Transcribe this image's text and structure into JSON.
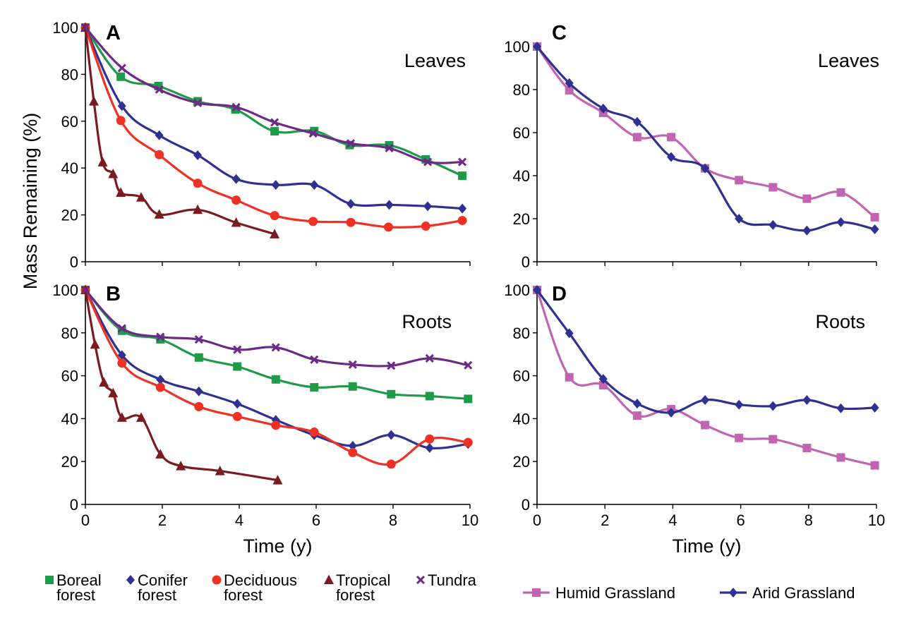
{
  "chart_data": [
    {
      "panel": "A",
      "tag": "Leaves",
      "type": "line",
      "xlabel": "",
      "ylabel": "Mass Remaining (%)",
      "xlim": [
        0,
        10
      ],
      "ylim": [
        0,
        100
      ],
      "xticks": [],
      "yticks": [
        "0",
        "20",
        "40",
        "60",
        "80",
        "100"
      ],
      "series": [
        {
          "key": "boreal",
          "color": "#1e9a49",
          "marker": "square",
          "x": [
            0,
            0.92,
            1.9,
            2.92,
            3.9,
            4.92,
            5.95,
            6.87,
            7.9,
            8.85,
            9.8
          ],
          "y": [
            100,
            79,
            75,
            68.5,
            65,
            55.7,
            55.8,
            49.8,
            49.7,
            43.7,
            36.7
          ]
        },
        {
          "key": "conifer",
          "color": "#2e3192",
          "marker": "diamond",
          "x": [
            0,
            0.95,
            1.92,
            2.92,
            3.92,
            4.95,
            5.95,
            6.9,
            7.9,
            8.9,
            9.8
          ],
          "y": [
            100,
            66.5,
            54,
            45.5,
            35.3,
            32.8,
            32.8,
            24.7,
            24.3,
            23.7,
            22.7
          ]
        },
        {
          "key": "deciduous",
          "color": "#ee3124",
          "marker": "circle",
          "x": [
            0,
            0.92,
            1.92,
            2.92,
            3.92,
            4.92,
            5.92,
            6.9,
            7.88,
            8.85,
            9.8
          ],
          "y": [
            100,
            60.3,
            45.7,
            33.5,
            26.3,
            19.7,
            17.2,
            16.8,
            14.8,
            15.2,
            17.6
          ]
        },
        {
          "key": "tropical",
          "color": "#7b1a1f",
          "marker": "triangle",
          "x": [
            0,
            0.22,
            0.45,
            0.72,
            0.92,
            1.45,
            1.92,
            2.92,
            3.92,
            4.92
          ],
          "y": [
            100,
            68.5,
            42.5,
            37.5,
            29.5,
            27.5,
            20.2,
            22.2,
            16.7,
            11.8
          ]
        },
        {
          "key": "tundra",
          "color": "#6c2a86",
          "marker": "cross",
          "x": [
            0,
            0.95,
            1.92,
            2.92,
            3.92,
            4.92,
            5.92,
            6.9,
            7.9,
            8.9,
            9.8
          ],
          "y": [
            100,
            82.7,
            73.5,
            67.8,
            66,
            59.5,
            54.8,
            50.5,
            48.5,
            42.6,
            42.6
          ]
        }
      ]
    },
    {
      "panel": "B",
      "tag": "Roots",
      "type": "line",
      "xlabel": "Time (y)",
      "ylabel": "",
      "xlim": [
        0,
        10
      ],
      "ylim": [
        0,
        100
      ],
      "xticks": [
        "0",
        "2",
        "4",
        "6",
        "8",
        "10"
      ],
      "yticks": [
        "0",
        "20",
        "40",
        "60",
        "80",
        "100"
      ],
      "series": [
        {
          "key": "boreal",
          "color": "#1e9a49",
          "marker": "square",
          "x": [
            0,
            0.95,
            1.95,
            2.95,
            3.95,
            4.95,
            5.95,
            6.95,
            7.95,
            8.95,
            9.95
          ],
          "y": [
            100,
            81,
            77,
            68.5,
            64.3,
            58.3,
            54.6,
            55,
            51.4,
            50.5,
            49.2
          ]
        },
        {
          "key": "conifer",
          "color": "#2e3192",
          "marker": "diamond",
          "x": [
            0,
            0.95,
            1.95,
            2.95,
            3.95,
            4.95,
            5.95,
            6.95,
            7.95,
            8.95,
            9.95
          ],
          "y": [
            100,
            69.6,
            58.2,
            52.7,
            46.9,
            39.4,
            32.3,
            27.3,
            32.4,
            26.3,
            28.2
          ]
        },
        {
          "key": "deciduous",
          "color": "#ee3124",
          "marker": "circle",
          "x": [
            0,
            0.95,
            1.95,
            2.95,
            3.95,
            4.95,
            5.95,
            6.95,
            7.95,
            8.95,
            9.95
          ],
          "y": [
            100,
            65.9,
            54.6,
            45.6,
            41,
            36.9,
            33.7,
            24.2,
            18.8,
            30.5,
            28.9
          ]
        },
        {
          "key": "tropical",
          "color": "#7b1a1f",
          "marker": "triangle",
          "x": [
            0,
            0.25,
            0.48,
            0.72,
            0.95,
            1.45,
            1.95,
            2.48,
            3.5,
            5.0
          ],
          "y": [
            100,
            74.6,
            56.9,
            51.9,
            40.5,
            40.5,
            23.4,
            17.9,
            15.6,
            11.3
          ]
        },
        {
          "key": "tundra",
          "color": "#6c2a86",
          "marker": "cross",
          "x": [
            0,
            0.95,
            1.95,
            2.95,
            3.95,
            4.95,
            5.95,
            6.95,
            7.95,
            8.95,
            9.95
          ],
          "y": [
            100,
            82.1,
            78.1,
            76.9,
            72.2,
            73.2,
            67.5,
            65.2,
            64.7,
            68.1,
            64.9
          ]
        }
      ]
    },
    {
      "panel": "C",
      "tag": "Leaves",
      "type": "line",
      "xlabel": "",
      "ylabel": "",
      "xlim": [
        0,
        10
      ],
      "ylim": [
        0,
        100
      ],
      "xticks": [],
      "yticks": [
        "0",
        "20",
        "40",
        "60",
        "80",
        "100"
      ],
      "series": [
        {
          "key": "humid",
          "color": "#c164b2",
          "marker": "square",
          "x": [
            0,
            0.95,
            1.95,
            2.95,
            3.95,
            4.95,
            5.95,
            6.95,
            7.95,
            8.95,
            9.95
          ],
          "y": [
            100,
            79.7,
            69.2,
            57.9,
            57.9,
            43.4,
            37.9,
            34.6,
            29.3,
            32.2,
            20.7
          ]
        },
        {
          "key": "arid",
          "color": "#2e3192",
          "marker": "diamond",
          "x": [
            0,
            0.95,
            1.95,
            2.95,
            3.95,
            4.95,
            5.95,
            6.95,
            7.95,
            8.95,
            9.95
          ],
          "y": [
            100,
            83,
            71.2,
            65,
            48.7,
            43.4,
            20,
            17.1,
            14.5,
            18.4,
            15.1
          ]
        }
      ]
    },
    {
      "panel": "D",
      "tag": "Roots",
      "type": "line",
      "xlabel": "Time (y)",
      "ylabel": "",
      "xlim": [
        0,
        10
      ],
      "ylim": [
        0,
        100
      ],
      "xticks": [
        "0",
        "2",
        "4",
        "6",
        "8",
        "10"
      ],
      "yticks": [
        "0",
        "20",
        "40",
        "60",
        "80",
        "100"
      ],
      "series": [
        {
          "key": "humid",
          "color": "#c164b2",
          "marker": "square",
          "x": [
            0,
            0.95,
            1.95,
            2.95,
            3.95,
            4.95,
            5.95,
            6.95,
            7.95,
            8.95,
            9.95
          ],
          "y": [
            100,
            59.3,
            55.6,
            41.4,
            44.4,
            37,
            31,
            30.4,
            26.3,
            21.9,
            18.2
          ]
        },
        {
          "key": "arid",
          "color": "#2e3192",
          "marker": "diamond",
          "x": [
            0,
            0.95,
            1.95,
            2.95,
            3.95,
            4.95,
            5.95,
            6.95,
            7.95,
            8.95,
            9.95
          ],
          "y": [
            100,
            79.8,
            58.5,
            47,
            42.8,
            48.7,
            46.5,
            45.9,
            48.7,
            44.8,
            45.1
          ]
        }
      ]
    }
  ],
  "legend_left": [
    {
      "key": "boreal",
      "line1": "Boreal",
      "line2": "forest",
      "color": "#1e9a49",
      "marker": "square"
    },
    {
      "key": "conifer",
      "line1": "Conifer",
      "line2": "forest",
      "color": "#2e3192",
      "marker": "diamond"
    },
    {
      "key": "deciduous",
      "line1": "Deciduous",
      "line2": "forest",
      "color": "#ee3124",
      "marker": "circle"
    },
    {
      "key": "tropical",
      "line1": "Tropical",
      "line2": "forest",
      "color": "#7b1a1f",
      "marker": "triangle"
    },
    {
      "key": "tundra",
      "line1": "Tundra",
      "line2": "",
      "color": "#6c2a86",
      "marker": "cross"
    }
  ],
  "legend_right": [
    {
      "key": "humid",
      "label": "Humid Grassland",
      "color": "#c164b2",
      "marker": "square"
    },
    {
      "key": "arid",
      "label": "Arid Grassland",
      "color": "#2e3192",
      "marker": "diamond"
    }
  ]
}
